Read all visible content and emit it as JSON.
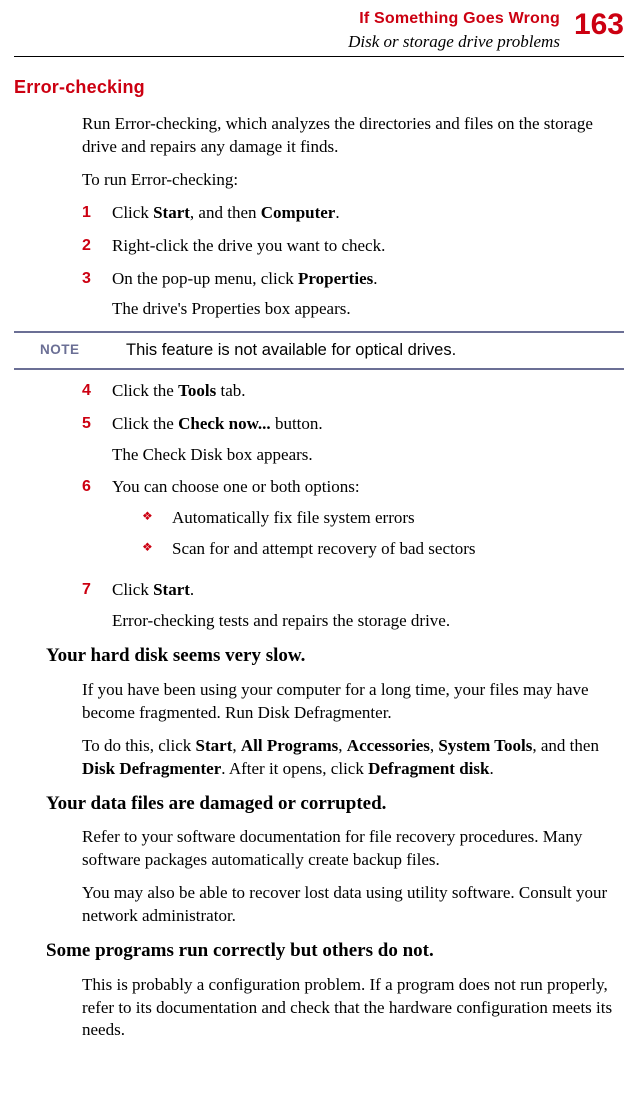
{
  "header": {
    "chapter": "If Something Goes Wrong",
    "section": "Disk or storage drive problems",
    "page": "163"
  },
  "heading1": "Error-checking",
  "p1": "Run Error-checking, which analyzes the directories and files on the storage drive and repairs any damage it finds.",
  "p2": "To run Error-checking:",
  "steps_a": {
    "s1": {
      "n": "1",
      "t": "Click ",
      "b1": "Start",
      "m": ", and then ",
      "b2": "Computer",
      "e": "."
    },
    "s2": {
      "n": "2",
      "t": "Right-click the drive you want to check."
    },
    "s3": {
      "n": "3",
      "t": "On the pop-up menu, click ",
      "b1": "Properties",
      "e": ".",
      "after": "The drive's Properties box appears."
    }
  },
  "note": {
    "label": "NOTE",
    "text": "This feature is not available for optical drives."
  },
  "steps_b": {
    "s4": {
      "n": "4",
      "t": "Click the ",
      "b1": "Tools",
      "e": " tab."
    },
    "s5": {
      "n": "5",
      "t": "Click the ",
      "b1": "Check now...",
      "e": " button.",
      "after": "The Check Disk box appears."
    },
    "s6": {
      "n": "6",
      "t": "You can choose one or both options:",
      "bul1": "Automatically fix file system errors",
      "bul2": "Scan for and attempt recovery of bad sectors"
    },
    "s7": {
      "n": "7",
      "t": "Click ",
      "b1": "Start",
      "e": ".",
      "after": "Error-checking tests and repairs the storage drive."
    }
  },
  "h2a": "Your hard disk seems very slow.",
  "p3": "If you have been using your computer for a long time, your files may have become fragmented. Run Disk Defragmenter.",
  "p4": {
    "pre": "To do this, click ",
    "b1": "Start",
    "c1": ", ",
    "b2": "All Programs",
    "c2": ", ",
    "b3": "Accessories",
    "c3": ", ",
    "b4": "System Tools",
    "c4": ", and then ",
    "b5": "Disk Defragmenter",
    "c5": ". After it opens, click ",
    "b6": "Defragment disk",
    "e": "."
  },
  "h2b": "Your data files are damaged or corrupted.",
  "p5": "Refer to your software documentation for file recovery procedures. Many software packages automatically create backup files.",
  "p6": "You may also be able to recover lost data using utility software. Consult your network administrator.",
  "h2c": "Some programs run correctly but others do not.",
  "p7": "This is probably a configuration problem. If a program does not run properly, refer to its documentation and check that the hardware configuration meets its needs.",
  "diamond": "❖"
}
